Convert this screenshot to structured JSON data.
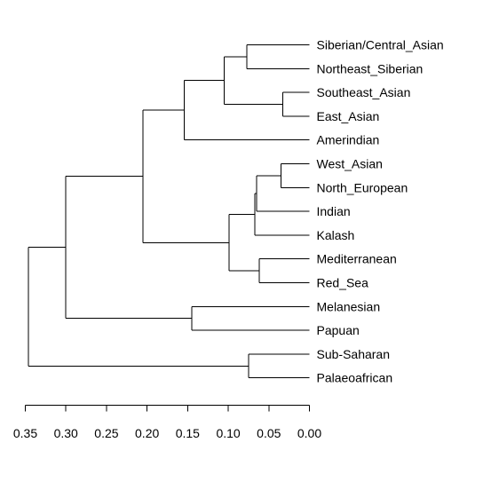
{
  "chart_data": {
    "type": "dendrogram",
    "orientation": "horizontal",
    "axis_reversed": true,
    "xlim": [
      0.35,
      0.0
    ],
    "ticks": [
      "0.35",
      "0.30",
      "0.25",
      "0.20",
      "0.15",
      "0.10",
      "0.05",
      "0.00"
    ],
    "tick_values": [
      0.35,
      0.3,
      0.25,
      0.2,
      0.15,
      0.1,
      0.05,
      0.0
    ],
    "leaves": [
      "Siberian/Central_Asian",
      "Northeast_Siberian",
      "Southeast_Asian",
      "East_Asian",
      "Amerindian",
      "West_Asian",
      "North_European",
      "Indian",
      "Kalash",
      "Mediterranean",
      "Red_Sea",
      "Melanesian",
      "Papuan",
      "Sub-Saharan",
      "Palaeoafrican"
    ],
    "merges": [
      {
        "id": "A",
        "children": [
          "Siberian/Central_Asian",
          "Northeast_Siberian"
        ],
        "height": 0.077
      },
      {
        "id": "B",
        "children": [
          "Southeast_Asian",
          "East_Asian"
        ],
        "height": 0.033
      },
      {
        "id": "C",
        "children": [
          "A",
          "B"
        ],
        "height": 0.105
      },
      {
        "id": "D",
        "children": [
          "C",
          "Amerindian"
        ],
        "height": 0.154
      },
      {
        "id": "E",
        "children": [
          "West_Asian",
          "North_European"
        ],
        "height": 0.035
      },
      {
        "id": "F",
        "children": [
          "E",
          "Indian"
        ],
        "height": 0.065
      },
      {
        "id": "G",
        "children": [
          "F",
          "Kalash"
        ],
        "height": 0.067
      },
      {
        "id": "H",
        "children": [
          "Mediterranean",
          "Red_Sea"
        ],
        "height": 0.062
      },
      {
        "id": "I",
        "children": [
          "G",
          "H"
        ],
        "height": 0.099
      },
      {
        "id": "J",
        "children": [
          "D",
          "I"
        ],
        "height": 0.205
      },
      {
        "id": "K",
        "children": [
          "Melanesian",
          "Papuan"
        ],
        "height": 0.145
      },
      {
        "id": "L",
        "children": [
          "J",
          "K"
        ],
        "height": 0.3
      },
      {
        "id": "M",
        "children": [
          "Sub-Saharan",
          "Palaeoafrican"
        ],
        "height": 0.075
      },
      {
        "id": "N",
        "children": [
          "L",
          "M"
        ],
        "height": 0.346
      }
    ]
  }
}
